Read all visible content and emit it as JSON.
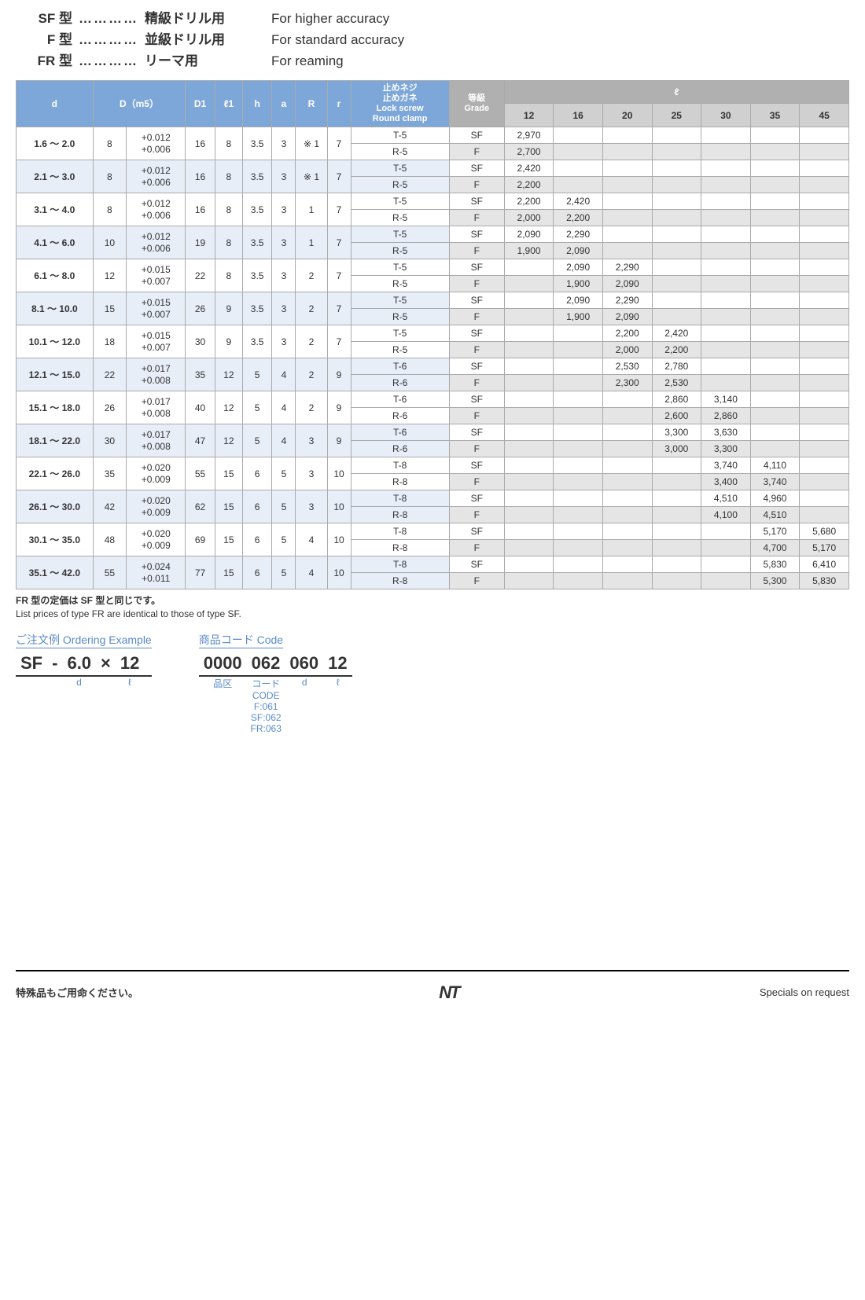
{
  "types": [
    {
      "label": "SF 型",
      "dots": "…………",
      "jp": "精級ドリル用",
      "en": "For higher accuracy"
    },
    {
      "label": "F 型",
      "dots": "…………",
      "jp": "並級ドリル用",
      "en": "For standard accuracy"
    },
    {
      "label": "FR 型",
      "dots": "…………",
      "jp": "リーマ用",
      "en": "For reaming"
    }
  ],
  "headers": {
    "d": "d",
    "Dm5": "D（m5）",
    "D1": "D1",
    "l1": "ℓ1",
    "h": "h",
    "a": "a",
    "R": "R",
    "r": "r",
    "lock": "止めネジ\n止めガネ\nLock screw\nRound clamp",
    "grade": "等級\nGrade",
    "l": "ℓ",
    "lcols": [
      "12",
      "16",
      "20",
      "25",
      "30",
      "35",
      "45"
    ]
  },
  "rows": [
    {
      "d": "1.6 ～ 2.0",
      "D": "8",
      "tol": "+0.012\n+0.006",
      "D1": "16",
      "l1": "8",
      "h": "3.5",
      "a": "3",
      "R": "※ 1",
      "r": "7",
      "lock": [
        "T-5",
        "R-5"
      ],
      "grade": [
        "SF",
        "F"
      ],
      "vals": {
        "SF": {
          "12": "2,970"
        },
        "F": {
          "12": "2,700"
        }
      },
      "tint": "w"
    },
    {
      "d": "2.1 ～ 3.0",
      "D": "8",
      "tol": "+0.012\n+0.006",
      "D1": "16",
      "l1": "8",
      "h": "3.5",
      "a": "3",
      "R": "※ 1",
      "r": "7",
      "lock": [
        "T-5",
        "R-5"
      ],
      "grade": [
        "SF",
        "F"
      ],
      "vals": {
        "SF": {
          "12": "2,420"
        },
        "F": {
          "12": "2,200"
        }
      },
      "tint": "b"
    },
    {
      "d": "3.1 ～ 4.0",
      "D": "8",
      "tol": "+0.012\n+0.006",
      "D1": "16",
      "l1": "8",
      "h": "3.5",
      "a": "3",
      "R": "1",
      "r": "7",
      "lock": [
        "T-5",
        "R-5"
      ],
      "grade": [
        "SF",
        "F"
      ],
      "vals": {
        "SF": {
          "12": "2,200",
          "16": "2,420"
        },
        "F": {
          "12": "2,000",
          "16": "2,200"
        }
      },
      "tint": "w"
    },
    {
      "d": "4.1 ～ 6.0",
      "D": "10",
      "tol": "+0.012\n+0.006",
      "D1": "19",
      "l1": "8",
      "h": "3.5",
      "a": "3",
      "R": "1",
      "r": "7",
      "lock": [
        "T-5",
        "R-5"
      ],
      "grade": [
        "SF",
        "F"
      ],
      "vals": {
        "SF": {
          "12": "2,090",
          "16": "2,290"
        },
        "F": {
          "12": "1,900",
          "16": "2,090"
        }
      },
      "tint": "b"
    },
    {
      "d": "6.1 ～ 8.0",
      "D": "12",
      "tol": "+0.015\n+0.007",
      "D1": "22",
      "l1": "8",
      "h": "3.5",
      "a": "3",
      "R": "2",
      "r": "7",
      "lock": [
        "T-5",
        "R-5"
      ],
      "grade": [
        "SF",
        "F"
      ],
      "vals": {
        "SF": {
          "16": "2,090",
          "20": "2,290"
        },
        "F": {
          "16": "1,900",
          "20": "2,090"
        }
      },
      "tint": "w"
    },
    {
      "d": "8.1 ～ 10.0",
      "D": "15",
      "tol": "+0.015\n+0.007",
      "D1": "26",
      "l1": "9",
      "h": "3.5",
      "a": "3",
      "R": "2",
      "r": "7",
      "lock": [
        "T-5",
        "R-5"
      ],
      "grade": [
        "SF",
        "F"
      ],
      "vals": {
        "SF": {
          "16": "2,090",
          "20": "2,290"
        },
        "F": {
          "16": "1,900",
          "20": "2,090"
        }
      },
      "tint": "b"
    },
    {
      "d": "10.1 ～ 12.0",
      "D": "18",
      "tol": "+0.015\n+0.007",
      "D1": "30",
      "l1": "9",
      "h": "3.5",
      "a": "3",
      "R": "2",
      "r": "7",
      "lock": [
        "T-5",
        "R-5"
      ],
      "grade": [
        "SF",
        "F"
      ],
      "vals": {
        "SF": {
          "20": "2,200",
          "25": "2,420"
        },
        "F": {
          "20": "2,000",
          "25": "2,200"
        }
      },
      "tint": "w"
    },
    {
      "d": "12.1 ～ 15.0",
      "D": "22",
      "tol": "+0.017\n+0.008",
      "D1": "35",
      "l1": "12",
      "h": "5",
      "a": "4",
      "R": "2",
      "r": "9",
      "lock": [
        "T-6",
        "R-6"
      ],
      "grade": [
        "SF",
        "F"
      ],
      "vals": {
        "SF": {
          "20": "2,530",
          "25": "2,780"
        },
        "F": {
          "20": "2,300",
          "25": "2,530"
        }
      },
      "tint": "b"
    },
    {
      "d": "15.1 ～ 18.0",
      "D": "26",
      "tol": "+0.017\n+0.008",
      "D1": "40",
      "l1": "12",
      "h": "5",
      "a": "4",
      "R": "2",
      "r": "9",
      "lock": [
        "T-6",
        "R-6"
      ],
      "grade": [
        "SF",
        "F"
      ],
      "vals": {
        "SF": {
          "25": "2,860",
          "30": "3,140"
        },
        "F": {
          "25": "2,600",
          "30": "2,860"
        }
      },
      "tint": "w"
    },
    {
      "d": "18.1 ～ 22.0",
      "D": "30",
      "tol": "+0.017\n+0.008",
      "D1": "47",
      "l1": "12",
      "h": "5",
      "a": "4",
      "R": "3",
      "r": "9",
      "lock": [
        "T-6",
        "R-6"
      ],
      "grade": [
        "SF",
        "F"
      ],
      "vals": {
        "SF": {
          "25": "3,300",
          "30": "3,630"
        },
        "F": {
          "25": "3,000",
          "30": "3,300"
        }
      },
      "tint": "b"
    },
    {
      "d": "22.1 ～ 26.0",
      "D": "35",
      "tol": "+0.020\n+0.009",
      "D1": "55",
      "l1": "15",
      "h": "6",
      "a": "5",
      "R": "3",
      "r": "10",
      "lock": [
        "T-8",
        "R-8"
      ],
      "grade": [
        "SF",
        "F"
      ],
      "vals": {
        "SF": {
          "30": "3,740",
          "35": "4,110"
        },
        "F": {
          "30": "3,400",
          "35": "3,740"
        }
      },
      "tint": "w"
    },
    {
      "d": "26.1 ～ 30.0",
      "D": "42",
      "tol": "+0.020\n+0.009",
      "D1": "62",
      "l1": "15",
      "h": "6",
      "a": "5",
      "R": "3",
      "r": "10",
      "lock": [
        "T-8",
        "R-8"
      ],
      "grade": [
        "SF",
        "F"
      ],
      "vals": {
        "SF": {
          "30": "4,510",
          "35": "4,960"
        },
        "F": {
          "30": "4,100",
          "35": "4,510"
        }
      },
      "tint": "b"
    },
    {
      "d": "30.1 ～ 35.0",
      "D": "48",
      "tol": "+0.020\n+0.009",
      "D1": "69",
      "l1": "15",
      "h": "6",
      "a": "5",
      "R": "4",
      "r": "10",
      "lock": [
        "T-8",
        "R-8"
      ],
      "grade": [
        "SF",
        "F"
      ],
      "vals": {
        "SF": {
          "35": "5,170",
          "45": "5,680"
        },
        "F": {
          "35": "4,700",
          "45": "5,170"
        }
      },
      "tint": "w"
    },
    {
      "d": "35.1 ～ 42.0",
      "D": "55",
      "tol": "+0.024\n+0.011",
      "D1": "77",
      "l1": "15",
      "h": "6",
      "a": "5",
      "R": "4",
      "r": "10",
      "lock": [
        "T-8",
        "R-8"
      ],
      "grade": [
        "SF",
        "F"
      ],
      "vals": {
        "SF": {
          "35": "5,830",
          "45": "6,410"
        },
        "F": {
          "35": "5,300",
          "45": "5,830"
        }
      },
      "tint": "b"
    }
  ],
  "notes": {
    "jp": "FR 型の定価は SF 型と同じです。",
    "en": "List prices of type FR are identical to those of type SF."
  },
  "ordering": {
    "title": "ご注文例 Ordering Example",
    "cells": [
      {
        "v": "SF",
        "sub": ""
      },
      {
        "v": "-",
        "sub": ""
      },
      {
        "v": "6.0",
        "sub": "d"
      },
      {
        "v": "×",
        "sub": ""
      },
      {
        "v": "12",
        "sub": "ℓ"
      }
    ]
  },
  "code": {
    "title": "商品コード Code",
    "cells": [
      {
        "v": "0000",
        "sub": "品区"
      },
      {
        "v": "062",
        "sub": "コード\nCODE\nF:061\nSF:062\nFR:063"
      },
      {
        "v": "060",
        "sub": "d"
      },
      {
        "v": "12",
        "sub": "ℓ"
      }
    ]
  },
  "footer": {
    "jp": "特殊品もご用命ください。",
    "logo": "NT",
    "en": "Specials on request"
  }
}
